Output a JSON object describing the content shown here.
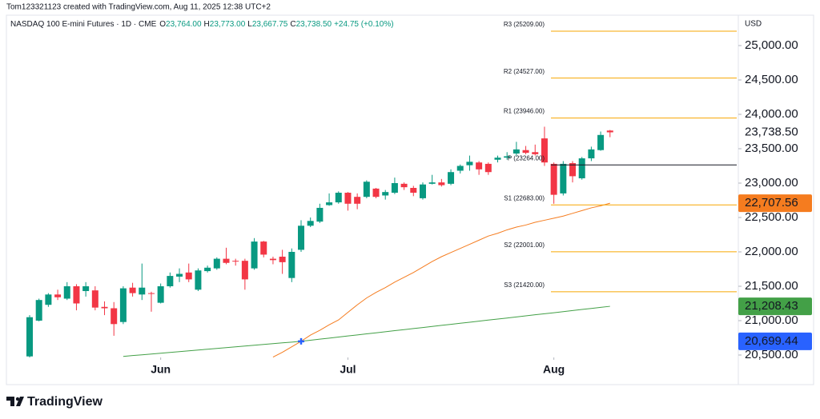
{
  "header": "Tom123321123 created with TradingView.com, Aug 11, 2025 12:38 UTC+2",
  "footer": "TradingView",
  "chart_data": {
    "type": "candlestick",
    "symbol": "NASDAQ 100 E-mini Futures · 1D · CME",
    "ohlc_legend": [
      {
        "key": "O",
        "value": "23,764.00"
      },
      {
        "key": "H",
        "value": "23,773.00"
      },
      {
        "key": "L",
        "value": "23,667.75"
      },
      {
        "key": "C",
        "value": "23,738.50"
      }
    ],
    "change": "+24.75 (+0.10%)",
    "currency": "USD",
    "up_color": "#089981",
    "down_color": "#f23645",
    "open": [
      20480,
      21000,
      21230,
      21380,
      21320,
      21500,
      21430,
      21440,
      21200,
      21180,
      20980,
      21480,
      21380,
      21400,
      21260,
      21500,
      21640,
      21700,
      21450,
      21720,
      21760,
      21900,
      21870,
      21870,
      21760,
      22150,
      21900,
      21930,
      21620,
      22030,
      22380,
      22440,
      22680,
      22720,
      22860,
      22800,
      22800,
      22920,
      22820,
      22860,
      22990,
      22930,
      22780,
      22990,
      23010,
      22990,
      23180,
      23260,
      23300,
      23280,
      23340,
      23370,
      23430,
      23480,
      23450,
      23650,
      23280,
      22850,
      23290,
      23070,
      23360,
      23480,
      23764
    ],
    "high": [
      21080,
      21320,
      21400,
      21450,
      21560,
      21530,
      21560,
      21500,
      21280,
      21270,
      21500,
      21550,
      21830,
      21420,
      21540,
      21700,
      21760,
      21830,
      21760,
      21800,
      21920,
      22060,
      21900,
      21900,
      22200,
      22160,
      21930,
      22030,
      22050,
      22460,
      22500,
      22700,
      22850,
      22880,
      22870,
      22850,
      23040,
      22930,
      22900,
      23080,
      23010,
      22960,
      23010,
      23120,
      23060,
      23200,
      23270,
      23400,
      23320,
      23300,
      23400,
      23450,
      23600,
      23540,
      23560,
      23820,
      23300,
      23320,
      23320,
      23380,
      23530,
      23750,
      23773
    ],
    "low": [
      20460,
      20990,
      21200,
      21300,
      21300,
      21150,
      21350,
      21150,
      21080,
      20780,
      20950,
      21350,
      21300,
      21130,
      21250,
      21480,
      21560,
      21560,
      21430,
      21700,
      21740,
      21820,
      21800,
      21450,
      21740,
      21920,
      21820,
      21680,
      21560,
      22000,
      22360,
      22420,
      22670,
      22700,
      22600,
      22620,
      22780,
      22780,
      22760,
      22840,
      22900,
      22810,
      22760,
      22980,
      22950,
      22970,
      23140,
      23180,
      23120,
      23120,
      23300,
      23340,
      23400,
      23420,
      23400,
      23250,
      22700,
      22820,
      23010,
      23050,
      23320,
      23470,
      23667.75
    ],
    "close": [
      21050,
      21300,
      21380,
      21340,
      21500,
      21250,
      21500,
      21190,
      21180,
      20950,
      21470,
      21400,
      21480,
      21390,
      21500,
      21650,
      21680,
      21600,
      21730,
      21770,
      21900,
      21840,
      21860,
      21600,
      22150,
      21960,
      21880,
      21850,
      22000,
      22380,
      22450,
      22640,
      22720,
      22860,
      22700,
      22700,
      23020,
      22800,
      22870,
      23000,
      22940,
      22860,
      22980,
      23010,
      22970,
      23160,
      23250,
      23310,
      23200,
      23160,
      23370,
      23390,
      23490,
      23440,
      23420,
      23300,
      22830,
      23280,
      23100,
      23360,
      23490,
      23700,
      23738.5
    ],
    "series": [
      {
        "color": "#f57c1f",
        "values": [
          null,
          null,
          null,
          null,
          null,
          null,
          null,
          null,
          null,
          null,
          null,
          null,
          null,
          null,
          null,
          null,
          null,
          null,
          null,
          null,
          null,
          null,
          null,
          null,
          null,
          null,
          20470,
          20540,
          20620,
          20700,
          20790,
          20860,
          20940,
          21010,
          21120,
          21230,
          21330,
          21410,
          21480,
          21560,
          21630,
          21700,
          21780,
          21860,
          21930,
          21990,
          22050,
          22110,
          22170,
          22230,
          22270,
          22320,
          22360,
          22390,
          22430,
          22460,
          22490,
          22520,
          22560,
          22600,
          22640,
          22670,
          22707.56
        ]
      },
      {
        "color": "#43a047",
        "values": [
          null,
          null,
          null,
          null,
          null,
          null,
          null,
          null,
          null,
          null,
          20480,
          20492,
          20503,
          20515,
          20526,
          20538,
          20550,
          20561,
          20573,
          20584,
          20596,
          20607,
          20619,
          20630,
          20642,
          20654,
          20665,
          20677,
          20688,
          20700,
          20715,
          20731,
          20746,
          20762,
          20777,
          20792,
          20808,
          20823,
          20838,
          20854,
          20869,
          20885,
          20900,
          20915,
          20931,
          20946,
          20962,
          20977,
          20992,
          21008,
          21023,
          21038,
          21054,
          21069,
          21085,
          21100,
          21115,
          21131,
          21146,
          21162,
          21177,
          21193,
          21208.43
        ]
      }
    ],
    "crossover": {
      "x": 29,
      "value": 20699.44,
      "color": "#2962ff"
    },
    "pivots": [
      {
        "label": "R3 (25209.00)",
        "value": 25209,
        "color": "#f7a600"
      },
      {
        "label": "R2 (24527.00)",
        "value": 24527,
        "color": "#f7a600"
      },
      {
        "label": "R1 (23946.00)",
        "value": 23946,
        "color": "#f7a600"
      },
      {
        "label": "P (23264.00)",
        "value": 23264,
        "color": "#131722"
      },
      {
        "label": "S1 (22683.00)",
        "value": 22683,
        "color": "#f7a600"
      },
      {
        "label": "S2 (22001.00)",
        "value": 22001,
        "color": "#f7a600"
      },
      {
        "label": "S3 (21420.00)",
        "value": 21420,
        "color": "#f7a600"
      }
    ],
    "price_labels": [
      {
        "value": 23738.5,
        "label": "23,738.50",
        "color": null
      },
      {
        "value": 22707.56,
        "label": "22,707.56",
        "color": "#f57c1f"
      },
      {
        "value": 21208.43,
        "label": "21,208.43",
        "color": "#43a047"
      },
      {
        "value": 20699.44,
        "label": "20,699.44",
        "color": "#2962ff"
      }
    ],
    "ylim": [
      20465,
      25430
    ],
    "yticks": [
      {
        "value": 20500,
        "label": "20,500.00"
      },
      {
        "value": 21000,
        "label": "21,000.00"
      },
      {
        "value": 21500,
        "label": "21,500.00"
      },
      {
        "value": 22000,
        "label": "22,000.00"
      },
      {
        "value": 22500,
        "label": "22,500.00"
      },
      {
        "value": 23000,
        "label": "23,000.00"
      },
      {
        "value": 23500,
        "label": "23,500.00"
      },
      {
        "value": 24000,
        "label": "24,000.00"
      },
      {
        "value": 24500,
        "label": "24,500.00"
      },
      {
        "value": 25000,
        "label": "25,000.00"
      }
    ],
    "xticks": [
      {
        "value": 14,
        "label": "Jun"
      },
      {
        "value": 34,
        "label": "Jul"
      },
      {
        "value": 56,
        "label": "Aug"
      }
    ]
  }
}
